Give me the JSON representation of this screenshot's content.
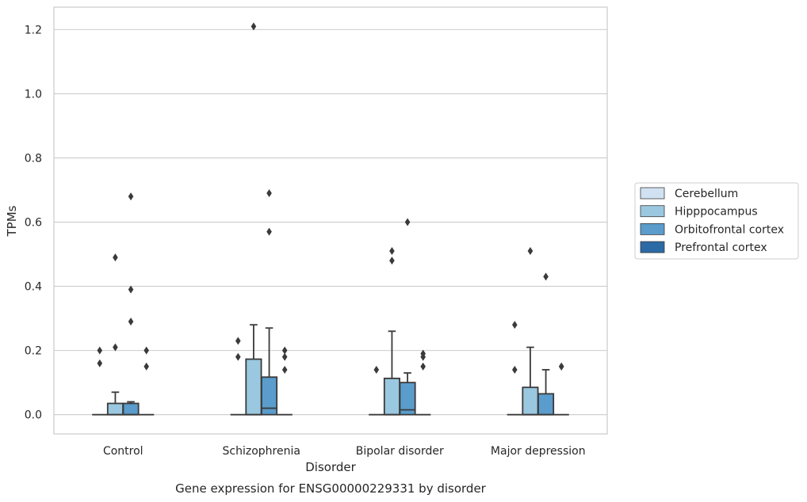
{
  "chart_data": {
    "type": "boxplot",
    "caption": "Gene expression for ENSG00000229331 by disorder",
    "xlabel": "Disorder",
    "ylabel": "TPMs",
    "ylim": [
      -0.06,
      1.27
    ],
    "yticks": [
      0.0,
      0.2,
      0.4,
      0.6,
      0.8,
      1.0,
      1.2
    ],
    "ytick_labels": [
      "0.0",
      "0.2",
      "0.4",
      "0.6",
      "0.8",
      "1.0",
      "1.2"
    ],
    "categories": [
      "Control",
      "Schizophrenia",
      "Bipolar disorder",
      "Major depression"
    ],
    "grid": "horizontal",
    "legend_position": "right",
    "series": [
      {
        "name": "Cerebellum",
        "color": "#d0e1f2",
        "boxes": [
          {
            "q1": 0,
            "median": 0,
            "q3": 0,
            "whislo": 0,
            "whishi": 0,
            "fliers": [
              0.2,
              0.16
            ]
          },
          {
            "q1": 0,
            "median": 0,
            "q3": 0,
            "whislo": 0,
            "whishi": 0,
            "fliers": [
              0.23,
              0.18
            ]
          },
          {
            "q1": 0,
            "median": 0,
            "q3": 0,
            "whislo": 0,
            "whishi": 0,
            "fliers": [
              0.14
            ]
          },
          {
            "q1": 0,
            "median": 0,
            "q3": 0,
            "whislo": 0,
            "whishi": 0,
            "fliers": [
              0.28,
              0.14
            ]
          }
        ]
      },
      {
        "name": "Hipppocampus",
        "color": "#9ac8e0",
        "boxes": [
          {
            "q1": 0,
            "median": 0,
            "q3": 0.035,
            "whislo": 0,
            "whishi": 0.07,
            "fliers": [
              0.49,
              0.21
            ]
          },
          {
            "q1": 0,
            "median": 0,
            "q3": 0.173,
            "whislo": 0,
            "whishi": 0.28,
            "fliers": [
              1.21
            ]
          },
          {
            "q1": 0,
            "median": 0,
            "q3": 0.113,
            "whislo": 0,
            "whishi": 0.26,
            "fliers": [
              0.51,
              0.48
            ]
          },
          {
            "q1": 0,
            "median": 0,
            "q3": 0.085,
            "whislo": 0,
            "whishi": 0.21,
            "fliers": [
              0.51
            ]
          }
        ]
      },
      {
        "name": "Orbitofrontal cortex",
        "color": "#5a9ccb",
        "boxes": [
          {
            "q1": 0,
            "median": 0,
            "q3": 0.035,
            "whislo": 0,
            "whishi": 0.04,
            "fliers": [
              0.68,
              0.39,
              0.29
            ]
          },
          {
            "q1": 0,
            "median": 0.02,
            "q3": 0.117,
            "whislo": 0,
            "whishi": 0.27,
            "fliers": [
              0.69,
              0.57
            ]
          },
          {
            "q1": 0,
            "median": 0.015,
            "q3": 0.1,
            "whislo": 0,
            "whishi": 0.13,
            "fliers": [
              0.6
            ]
          },
          {
            "q1": 0,
            "median": 0,
            "q3": 0.065,
            "whislo": 0,
            "whishi": 0.14,
            "fliers": [
              0.43
            ]
          }
        ]
      },
      {
        "name": "Prefrontal cortex",
        "color": "#2b6aa5",
        "boxes": [
          {
            "q1": 0,
            "median": 0,
            "q3": 0,
            "whislo": 0,
            "whishi": 0,
            "fliers": [
              0.2,
              0.15
            ]
          },
          {
            "q1": 0,
            "median": 0,
            "q3": 0,
            "whislo": 0,
            "whishi": 0,
            "fliers": [
              0.2,
              0.18,
              0.14
            ]
          },
          {
            "q1": 0,
            "median": 0,
            "q3": 0,
            "whislo": 0,
            "whishi": 0,
            "fliers": [
              0.19,
              0.18,
              0.15
            ]
          },
          {
            "q1": 0,
            "median": 0,
            "q3": 0,
            "whislo": 0,
            "whishi": 0,
            "fliers": [
              0.15,
              0.15
            ]
          }
        ]
      }
    ]
  }
}
